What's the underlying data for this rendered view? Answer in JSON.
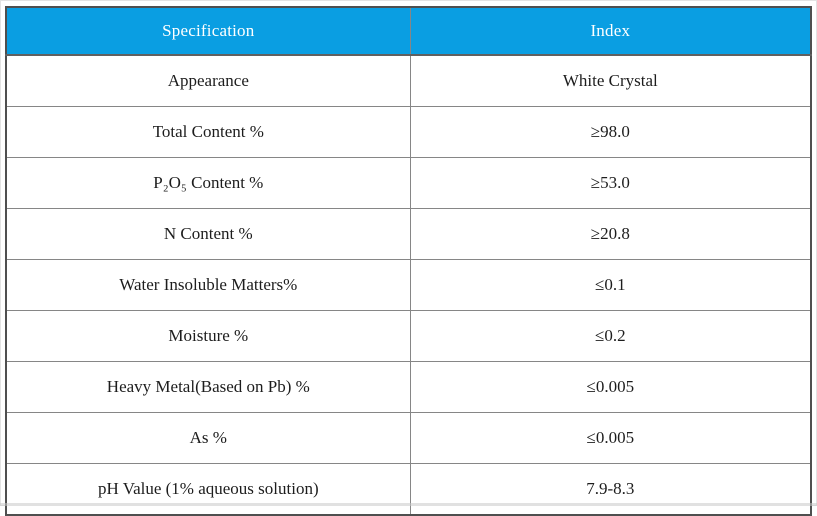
{
  "colors": {
    "header_bg": "#0a9ee2",
    "header_text": "#ffffff",
    "outer_border": "#4f4f4f",
    "grid_line": "#868686",
    "cell_text": "#1d1d1d"
  },
  "table": {
    "columns": [
      {
        "label": "Specification"
      },
      {
        "label": "Index"
      }
    ],
    "rows": [
      {
        "spec": "Appearance",
        "index": "White Crystal"
      },
      {
        "spec": "Total Content %",
        "index": "≥98.0"
      },
      {
        "spec": "P₂O₅ Content %",
        "index": "≥53.0"
      },
      {
        "spec": "N Content %",
        "index": "≥20.8"
      },
      {
        "spec": "Water Insoluble Matters%",
        "index": "≤0.1"
      },
      {
        "spec": "Moisture %",
        "index": "≤0.2"
      },
      {
        "spec": "Heavy Metal(Based on Pb) %",
        "index": "≤0.005"
      },
      {
        "spec": "As %",
        "index": "≤0.005"
      },
      {
        "spec": "pH Value (1% aqueous solution)",
        "index": "7.9-8.3"
      }
    ]
  }
}
